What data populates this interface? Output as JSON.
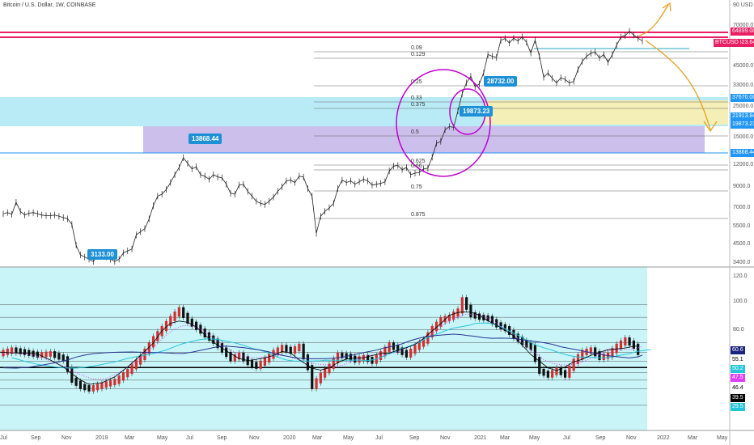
{
  "header": {
    "title": "Bitcoin / U.S. Dollar, 1W, COINBASE"
  },
  "price_axis": {
    "unit_label": "90 USD 0",
    "ticks": [
      "70000.0",
      "45000.0",
      "33000.0",
      "25000.0",
      "15000.0",
      "12000.0",
      "9000.0",
      "7000.0",
      "5500.0",
      "4500.0",
      "3400.0"
    ]
  },
  "osc_axis": {
    "ticks": [
      "120.0",
      "100.0",
      "80.0"
    ]
  },
  "time_axis": {
    "ticks": [
      "Jul",
      "Sep",
      "Nov",
      "2019",
      "Mar",
      "May",
      "Jul",
      "Sep",
      "Nov",
      "2020",
      "Mar",
      "May",
      "Jul",
      "Sep",
      "Nov",
      "2021",
      "Mar",
      "May",
      "Jul",
      "Sep",
      "Nov",
      "2022",
      "Mar",
      "May"
    ]
  },
  "price_badges": [
    {
      "text": "64899.00",
      "color": "#e91e63"
    },
    {
      "text": "56623.64",
      "color": "#e91e63"
    },
    {
      "text": "BTCUSD",
      "color": "#e91e63"
    },
    {
      "text": "37670.00",
      "color": "#2196f3"
    },
    {
      "text": "21913.84",
      "color": "#2196f3"
    },
    {
      "text": "19873.23",
      "color": "#2196f3"
    },
    {
      "text": "13868.44",
      "color": "#2196f3"
    }
  ],
  "osc_badges": [
    {
      "text": "60.6",
      "color": "#1a237e"
    },
    {
      "text": "55.1",
      "color": "#ffffff"
    },
    {
      "text": "50.2",
      "color": "#26c6da"
    },
    {
      "text": "47.5",
      "color": "#e040fb"
    },
    {
      "text": "46.4",
      "color": "#ffffff"
    },
    {
      "text": "39.5",
      "color": "#000000"
    },
    {
      "text": "29.5",
      "color": "#26c6da"
    }
  ],
  "callouts": [
    {
      "text": "13868.44"
    },
    {
      "text": "3133.00"
    },
    {
      "text": "28732.00"
    },
    {
      "text": "19873.23"
    }
  ],
  "fib_labels": [
    "0.09",
    "0.129",
    "0.25",
    "0.33",
    "0.375",
    "0.5",
    "0.625",
    "0.66",
    "0.75",
    "0.875"
  ],
  "chart_data": {
    "type": "candlestick",
    "symbol": "BTCUSD",
    "exchange": "COINBASE",
    "interval": "1W",
    "price_range": [
      3400,
      90000
    ],
    "price_scale": "log",
    "series": [
      {
        "name": "price",
        "points": [
          [
            0,
            6400
          ],
          [
            1,
            6500
          ],
          [
            2,
            6350
          ],
          [
            3,
            7400
          ],
          [
            4,
            6600
          ],
          [
            5,
            6300
          ],
          [
            6,
            6450
          ],
          [
            7,
            6500
          ],
          [
            8,
            6400
          ],
          [
            9,
            6300
          ],
          [
            10,
            6250
          ],
          [
            11,
            6250
          ],
          [
            12,
            6300
          ],
          [
            13,
            6200
          ],
          [
            14,
            6100
          ],
          [
            15,
            6000
          ],
          [
            16,
            5600
          ],
          [
            17,
            4300
          ],
          [
            18,
            3800
          ],
          [
            19,
            3700
          ],
          [
            20,
            3600
          ],
          [
            21,
            3500
          ],
          [
            22,
            3800
          ],
          [
            23,
            3900
          ],
          [
            24,
            3700
          ],
          [
            25,
            3600
          ],
          [
            26,
            3500
          ],
          [
            27,
            3600
          ],
          [
            28,
            3900
          ],
          [
            29,
            4000
          ],
          [
            30,
            4100
          ],
          [
            31,
            4900
          ],
          [
            32,
            5100
          ],
          [
            33,
            5300
          ],
          [
            34,
            6000
          ],
          [
            35,
            7100
          ],
          [
            36,
            8000
          ],
          [
            37,
            8200
          ],
          [
            38,
            8700
          ],
          [
            39,
            9500
          ],
          [
            40,
            10500
          ],
          [
            41,
            11500
          ],
          [
            42,
            13000
          ],
          [
            43,
            12100
          ],
          [
            44,
            11300
          ],
          [
            45,
            11600
          ],
          [
            46,
            10500
          ],
          [
            47,
            10300
          ],
          [
            48,
            9900
          ],
          [
            49,
            10500
          ],
          [
            50,
            10200
          ],
          [
            51,
            10100
          ],
          [
            52,
            9300
          ],
          [
            53,
            8300
          ],
          [
            54,
            8200
          ],
          [
            55,
            9200
          ],
          [
            56,
            9300
          ],
          [
            57,
            8500
          ],
          [
            58,
            8000
          ],
          [
            59,
            7500
          ],
          [
            60,
            7300
          ],
          [
            61,
            7200
          ],
          [
            62,
            7500
          ],
          [
            63,
            7900
          ],
          [
            64,
            8500
          ],
          [
            65,
            9000
          ],
          [
            66,
            9700
          ],
          [
            67,
            9800
          ],
          [
            68,
            9500
          ],
          [
            69,
            10300
          ],
          [
            70,
            10200
          ],
          [
            71,
            8800
          ],
          [
            72,
            8000
          ],
          [
            73,
            5000
          ],
          [
            74,
            6200
          ],
          [
            75,
            6600
          ],
          [
            76,
            6900
          ],
          [
            77,
            7300
          ],
          [
            78,
            8800
          ],
          [
            79,
            9800
          ],
          [
            80,
            9500
          ],
          [
            81,
            9700
          ],
          [
            82,
            9300
          ],
          [
            83,
            9600
          ],
          [
            84,
            9900
          ],
          [
            85,
            9700
          ],
          [
            86,
            9200
          ],
          [
            87,
            9300
          ],
          [
            88,
            9400
          ],
          [
            89,
            9600
          ],
          [
            90,
            11000
          ],
          [
            91,
            11700
          ],
          [
            92,
            11800
          ],
          [
            93,
            11200
          ],
          [
            94,
            11500
          ],
          [
            95,
            10500
          ],
          [
            96,
            10700
          ],
          [
            97,
            10800
          ],
          [
            98,
            11300
          ],
          [
            99,
            11400
          ],
          [
            100,
            13100
          ],
          [
            101,
            15600
          ],
          [
            102,
            16000
          ],
          [
            103,
            18500
          ],
          [
            104,
            19300
          ],
          [
            105,
            19100
          ],
          [
            106,
            23500
          ],
          [
            107,
            29300
          ],
          [
            108,
            33500
          ],
          [
            109,
            36500
          ],
          [
            110,
            32000
          ],
          [
            111,
            33100
          ],
          [
            112,
            38000
          ],
          [
            113,
            48000
          ],
          [
            114,
            47000
          ],
          [
            115,
            46300
          ],
          [
            116,
            57500
          ],
          [
            117,
            58800
          ],
          [
            118,
            55500
          ],
          [
            119,
            59000
          ],
          [
            120,
            57000
          ],
          [
            121,
            60000
          ],
          [
            122,
            56000
          ],
          [
            123,
            49000
          ],
          [
            124,
            57500
          ],
          [
            125,
            47000
          ],
          [
            126,
            36000
          ],
          [
            127,
            38000
          ],
          [
            128,
            35500
          ],
          [
            129,
            33500
          ],
          [
            130,
            35800
          ],
          [
            131,
            35000
          ],
          [
            132,
            33500
          ],
          [
            133,
            34200
          ],
          [
            134,
            39800
          ],
          [
            135,
            44000
          ],
          [
            136,
            47000
          ],
          [
            137,
            48800
          ],
          [
            138,
            49500
          ],
          [
            139,
            46000
          ],
          [
            140,
            48000
          ],
          [
            141,
            43500
          ],
          [
            142,
            48000
          ],
          [
            143,
            54000
          ],
          [
            144,
            60000
          ],
          [
            145,
            61000
          ],
          [
            146,
            64500
          ],
          [
            147,
            61400
          ],
          [
            148,
            59000
          ],
          [
            149,
            57000
          ]
        ]
      },
      {
        "name": "oscillator",
        "points": [
          [
            0,
            61
          ],
          [
            3,
            64
          ],
          [
            6,
            62
          ],
          [
            9,
            60
          ],
          [
            12,
            61
          ],
          [
            15,
            57
          ],
          [
            17,
            40
          ],
          [
            19,
            35
          ],
          [
            21,
            33
          ],
          [
            24,
            36
          ],
          [
            27,
            39
          ],
          [
            30,
            47
          ],
          [
            33,
            58
          ],
          [
            36,
            73
          ],
          [
            38,
            81
          ],
          [
            40,
            89
          ],
          [
            42,
            96
          ],
          [
            44,
            87
          ],
          [
            46,
            82
          ],
          [
            48,
            76
          ],
          [
            50,
            71
          ],
          [
            52,
            64
          ],
          [
            54,
            57
          ],
          [
            56,
            60
          ],
          [
            58,
            54
          ],
          [
            60,
            51
          ],
          [
            62,
            56
          ],
          [
            64,
            62
          ],
          [
            66,
            66
          ],
          [
            68,
            63
          ],
          [
            70,
            67
          ],
          [
            72,
            50
          ],
          [
            73,
            35
          ],
          [
            75,
            44
          ],
          [
            77,
            51
          ],
          [
            79,
            60
          ],
          [
            81,
            59
          ],
          [
            83,
            56
          ],
          [
            85,
            58
          ],
          [
            87,
            55
          ],
          [
            89,
            61
          ],
          [
            91,
            68
          ],
          [
            93,
            64
          ],
          [
            95,
            60
          ],
          [
            97,
            66
          ],
          [
            99,
            71
          ],
          [
            101,
            81
          ],
          [
            103,
            88
          ],
          [
            105,
            90
          ],
          [
            107,
            95
          ],
          [
            108,
            104
          ],
          [
            110,
            92
          ],
          [
            112,
            90
          ],
          [
            114,
            89
          ],
          [
            116,
            84
          ],
          [
            118,
            81
          ],
          [
            120,
            75
          ],
          [
            122,
            70
          ],
          [
            124,
            66
          ],
          [
            126,
            47
          ],
          [
            128,
            44
          ],
          [
            130,
            48
          ],
          [
            132,
            44
          ],
          [
            134,
            55
          ],
          [
            136,
            62
          ],
          [
            138,
            64
          ],
          [
            140,
            58
          ],
          [
            142,
            60
          ],
          [
            144,
            67
          ],
          [
            146,
            72
          ],
          [
            148,
            67
          ],
          [
            149,
            62
          ]
        ]
      }
    ]
  }
}
